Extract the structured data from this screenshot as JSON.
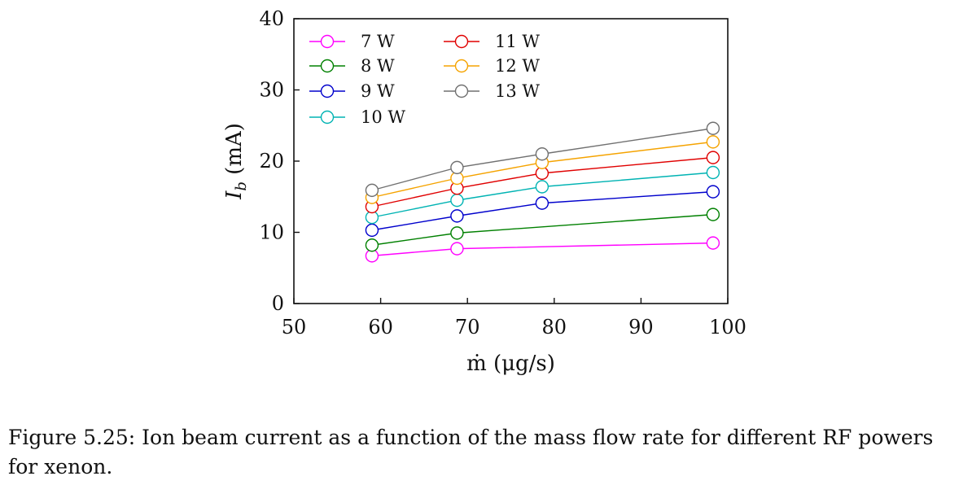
{
  "chart_data": {
    "type": "line",
    "xlabel": "ṁ (μg/s)",
    "ylabel_main": "I",
    "ylabel_sub": "b",
    "ylabel_unit": "(mA)",
    "xlim": [
      50,
      100
    ],
    "ylim": [
      0,
      40
    ],
    "xticks": [
      "50",
      "60",
      "70",
      "80",
      "90",
      "100"
    ],
    "yticks": [
      "0",
      "10",
      "20",
      "30",
      "40"
    ],
    "grid": false,
    "legend_placement": "top-left",
    "marker": "open-circle",
    "series": [
      {
        "name": "7 W",
        "color": "#ff00ff",
        "x": [
          59,
          68.8,
          98.3
        ],
        "y": [
          6.7,
          7.7,
          8.5
        ]
      },
      {
        "name": "8 W",
        "color": "#008000",
        "x": [
          59,
          68.8,
          98.3
        ],
        "y": [
          8.2,
          9.9,
          12.5
        ]
      },
      {
        "name": "9 W",
        "color": "#0000cc",
        "x": [
          59,
          68.8,
          78.6,
          98.3
        ],
        "y": [
          10.3,
          12.3,
          14.1,
          15.7
        ]
      },
      {
        "name": "10 W",
        "color": "#00b3b3",
        "x": [
          59,
          68.8,
          78.6,
          98.3
        ],
        "y": [
          12.1,
          14.5,
          16.4,
          18.4
        ]
      },
      {
        "name": "11 W",
        "color": "#e00000",
        "x": [
          59,
          68.8,
          78.6,
          98.3
        ],
        "y": [
          13.6,
          16.2,
          18.3,
          20.5
        ]
      },
      {
        "name": "12 W",
        "color": "#f5a300",
        "x": [
          59,
          68.8,
          78.6,
          98.3
        ],
        "y": [
          14.9,
          17.6,
          19.8,
          22.7
        ]
      },
      {
        "name": "13 W",
        "color": "#707070",
        "x": [
          59,
          68.8,
          78.6,
          98.3
        ],
        "y": [
          15.9,
          19.1,
          21.0,
          24.6
        ]
      }
    ]
  },
  "caption": {
    "text": "Figure 5.25: Ion beam current as a function of the mass flow rate for different RF powers for xenon."
  }
}
